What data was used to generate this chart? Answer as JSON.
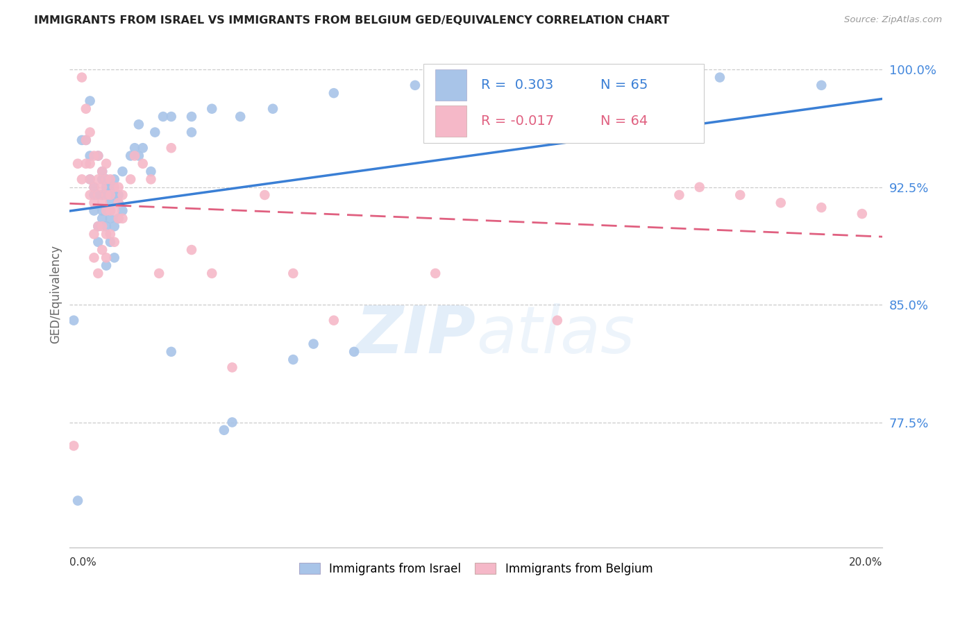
{
  "title": "IMMIGRANTS FROM ISRAEL VS IMMIGRANTS FROM BELGIUM GED/EQUIVALENCY CORRELATION CHART",
  "source": "Source: ZipAtlas.com",
  "ylabel": "GED/Equivalency",
  "xmin": 0.0,
  "xmax": 0.2,
  "ymin": 0.695,
  "ymax": 1.018,
  "yticks": [
    0.775,
    0.85,
    0.925,
    1.0
  ],
  "ytick_labels": [
    "77.5%",
    "85.0%",
    "92.5%",
    "100.0%"
  ],
  "israel_color": "#a8c4e8",
  "belgium_color": "#f5b8c8",
  "israel_R": 0.303,
  "israel_N": 65,
  "belgium_R": -0.017,
  "belgium_N": 64,
  "trend_israel_color": "#3a7fd5",
  "trend_belgium_color": "#e06080",
  "background_color": "#ffffff",
  "israel_x": [
    0.001,
    0.002,
    0.003,
    0.004,
    0.005,
    0.005,
    0.005,
    0.006,
    0.006,
    0.006,
    0.007,
    0.007,
    0.007,
    0.007,
    0.008,
    0.008,
    0.008,
    0.008,
    0.008,
    0.009,
    0.009,
    0.009,
    0.009,
    0.009,
    0.009,
    0.01,
    0.01,
    0.01,
    0.01,
    0.01,
    0.01,
    0.011,
    0.011,
    0.011,
    0.011,
    0.012,
    0.012,
    0.012,
    0.013,
    0.013,
    0.015,
    0.016,
    0.017,
    0.017,
    0.018,
    0.02,
    0.021,
    0.023,
    0.025,
    0.025,
    0.03,
    0.03,
    0.035,
    0.038,
    0.04,
    0.042,
    0.05,
    0.055,
    0.06,
    0.065,
    0.07,
    0.085,
    0.09,
    0.16,
    0.185
  ],
  "israel_y": [
    0.84,
    0.725,
    0.955,
    0.955,
    0.93,
    0.945,
    0.98,
    0.91,
    0.92,
    0.925,
    0.89,
    0.9,
    0.92,
    0.945,
    0.905,
    0.91,
    0.92,
    0.93,
    0.935,
    0.875,
    0.9,
    0.91,
    0.92,
    0.925,
    0.93,
    0.89,
    0.905,
    0.91,
    0.915,
    0.92,
    0.925,
    0.88,
    0.9,
    0.92,
    0.93,
    0.905,
    0.915,
    0.92,
    0.91,
    0.935,
    0.945,
    0.95,
    0.945,
    0.965,
    0.95,
    0.935,
    0.96,
    0.97,
    0.82,
    0.97,
    0.96,
    0.97,
    0.975,
    0.77,
    0.775,
    0.97,
    0.975,
    0.815,
    0.825,
    0.985,
    0.82,
    0.99,
    0.99,
    0.995,
    0.99
  ],
  "belgium_x": [
    0.001,
    0.002,
    0.003,
    0.003,
    0.004,
    0.004,
    0.004,
    0.005,
    0.005,
    0.005,
    0.005,
    0.006,
    0.006,
    0.006,
    0.006,
    0.006,
    0.007,
    0.007,
    0.007,
    0.007,
    0.007,
    0.008,
    0.008,
    0.008,
    0.008,
    0.008,
    0.009,
    0.009,
    0.009,
    0.009,
    0.009,
    0.009,
    0.01,
    0.01,
    0.01,
    0.01,
    0.011,
    0.011,
    0.011,
    0.012,
    0.012,
    0.012,
    0.013,
    0.013,
    0.015,
    0.016,
    0.018,
    0.02,
    0.022,
    0.025,
    0.03,
    0.035,
    0.04,
    0.048,
    0.055,
    0.065,
    0.09,
    0.12,
    0.15,
    0.155,
    0.165,
    0.175,
    0.185,
    0.195
  ],
  "belgium_y": [
    0.76,
    0.94,
    0.93,
    0.995,
    0.94,
    0.955,
    0.975,
    0.92,
    0.93,
    0.94,
    0.96,
    0.88,
    0.895,
    0.915,
    0.925,
    0.945,
    0.87,
    0.9,
    0.92,
    0.93,
    0.945,
    0.885,
    0.9,
    0.915,
    0.925,
    0.935,
    0.88,
    0.895,
    0.91,
    0.92,
    0.93,
    0.94,
    0.895,
    0.91,
    0.92,
    0.93,
    0.89,
    0.91,
    0.925,
    0.905,
    0.915,
    0.925,
    0.905,
    0.92,
    0.93,
    0.945,
    0.94,
    0.93,
    0.87,
    0.95,
    0.885,
    0.87,
    0.81,
    0.92,
    0.87,
    0.84,
    0.87,
    0.84,
    0.92,
    0.925,
    0.92,
    0.915,
    0.912,
    0.908
  ]
}
